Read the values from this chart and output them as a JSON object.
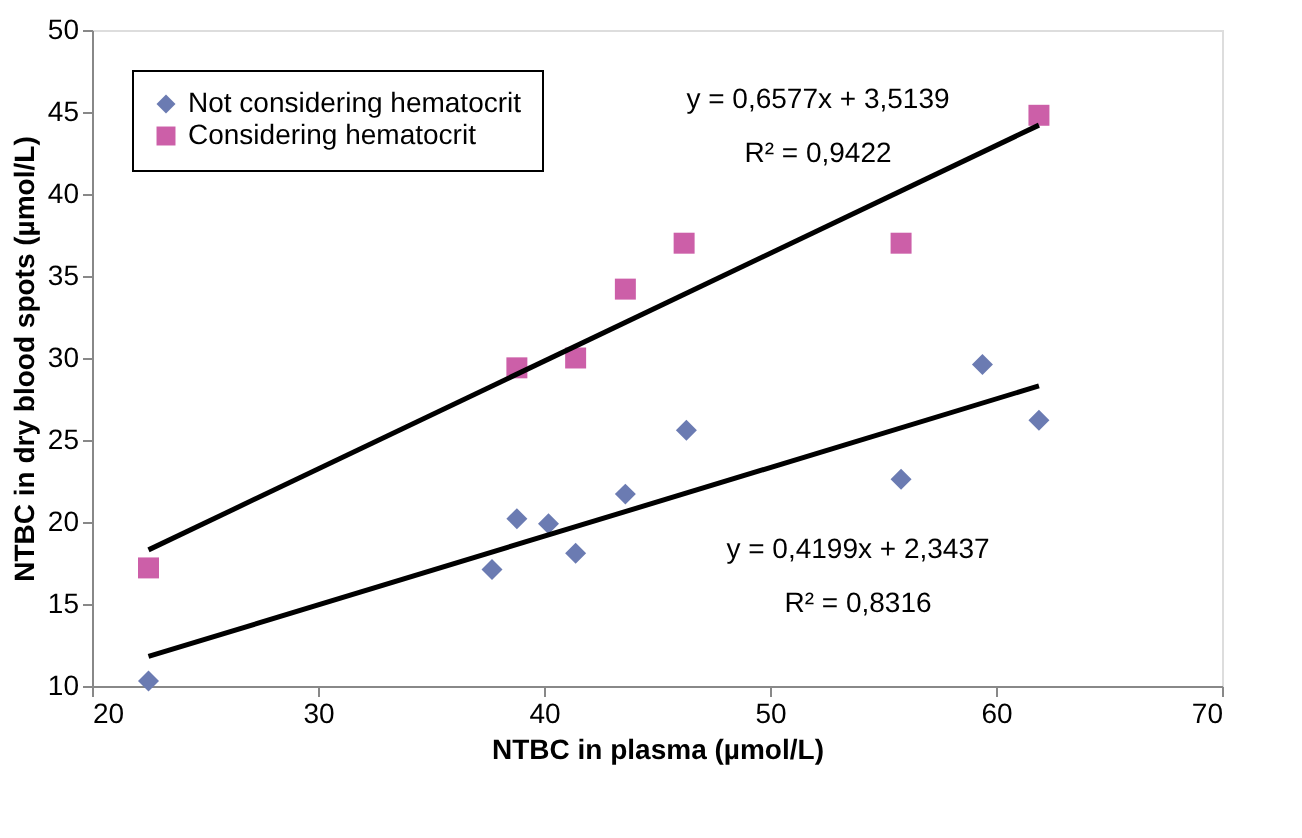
{
  "chart_data": {
    "type": "scatter",
    "xlabel": "NTBC in plasma (µmol/L)",
    "ylabel": "NTBC in dry blood spots (µmol/L)",
    "xlim": [
      20,
      70
    ],
    "xticks": [
      20,
      30,
      40,
      50,
      60,
      70
    ],
    "ylim": [
      10,
      50
    ],
    "yticks": [
      10,
      15,
      20,
      25,
      30,
      35,
      40,
      45,
      50
    ],
    "grid": false,
    "legend": "top left",
    "series": [
      {
        "name": "Not considering hematocrit",
        "color": "#6b7bb2",
        "marker": "diamond",
        "x": [
          22.5,
          37.7,
          38.8,
          40.2,
          41.4,
          43.6,
          46.3,
          55.8,
          59.4,
          61.9
        ],
        "values": [
          10.3,
          17.1,
          20.2,
          19.9,
          18.1,
          21.7,
          25.6,
          22.6,
          29.6,
          26.2
        ]
      },
      {
        "name": "Considering hematocrit",
        "color": "#cc5fa8",
        "marker": "square",
        "x": [
          22.5,
          38.8,
          41.4,
          43.6,
          46.2,
          55.8,
          61.9
        ],
        "values": [
          17.2,
          29.4,
          30.0,
          34.2,
          37.0,
          37.0,
          44.8
        ]
      },
      {
        "type": "line",
        "color": "#000000",
        "x": [
          22.5,
          61.9
        ],
        "values": [
          18.3,
          44.2
        ]
      },
      {
        "type": "line",
        "color": "#000000",
        "x": [
          22.5,
          61.9
        ],
        "values": [
          11.8,
          28.3
        ]
      }
    ],
    "annotations": [
      "y = 0,6577x + 3,5139",
      "R² = 0,9422",
      "y = 0,4199x + 2,3437",
      "R² = 0,8316"
    ]
  }
}
